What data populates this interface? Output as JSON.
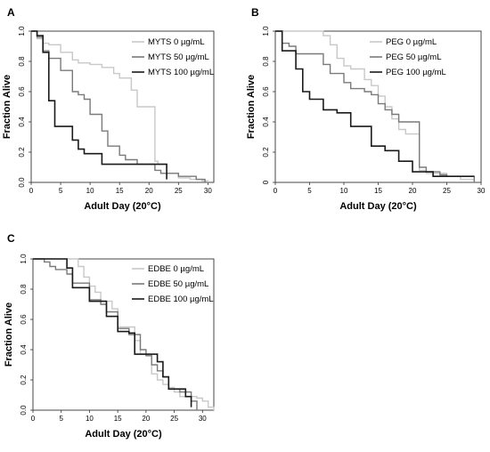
{
  "chart_data": [
    {
      "type": "line",
      "panel": "A",
      "xlabel": "Adult Day (20°C)",
      "ylabel": "Fraction Alive",
      "xlim": [
        0,
        31
      ],
      "ylim": [
        0,
        1.0
      ],
      "x_ticks": [
        0,
        5,
        10,
        15,
        20,
        25,
        30
      ],
      "y_ticks": [
        0.0,
        0.2,
        0.4,
        0.6,
        0.8,
        1.0
      ],
      "y_tick_labels": [
        "0.0",
        "0.2",
        "0.4",
        "0.6",
        "0.8",
        "1.0"
      ],
      "grid": false,
      "legend_position": "top-right",
      "step": true,
      "series": [
        {
          "name": "MYTS 0 µg/mL",
          "color": "#c8c8c8",
          "x": [
            0,
            1,
            2,
            3,
            5,
            7,
            8,
            10,
            12,
            14,
            15,
            17,
            18,
            21,
            21.5,
            23,
            25,
            27,
            29,
            30
          ],
          "y": [
            1.0,
            0.95,
            0.92,
            0.91,
            0.86,
            0.81,
            0.79,
            0.78,
            0.76,
            0.72,
            0.69,
            0.61,
            0.5,
            0.14,
            0.12,
            0.06,
            0.03,
            0.02,
            0.01,
            0.0
          ]
        },
        {
          "name": "MYTS 50 µg/mL",
          "color": "#7a7a7a",
          "x": [
            0,
            1,
            2,
            3,
            5,
            7,
            8,
            9,
            10,
            12,
            13,
            15,
            16,
            18,
            21,
            22,
            25,
            28,
            29.5
          ],
          "y": [
            1.0,
            0.96,
            0.87,
            0.82,
            0.74,
            0.6,
            0.58,
            0.55,
            0.45,
            0.34,
            0.24,
            0.18,
            0.15,
            0.12,
            0.08,
            0.06,
            0.04,
            0.02,
            0.0
          ]
        },
        {
          "name": "MYTS 100 µg/mL",
          "color": "#1a1a1a",
          "x": [
            0,
            1,
            2,
            3,
            4,
            7,
            8,
            9,
            12,
            23
          ],
          "y": [
            1.0,
            0.97,
            0.86,
            0.54,
            0.37,
            0.28,
            0.22,
            0.19,
            0.12,
            0.02
          ]
        }
      ]
    },
    {
      "type": "line",
      "panel": "B",
      "xlabel": "Adult Day (20°C)",
      "ylabel": "Fraction Alive",
      "xlim": [
        0,
        30
      ],
      "ylim": [
        0,
        1.0
      ],
      "x_ticks": [
        0,
        5,
        10,
        15,
        20,
        25,
        30
      ],
      "y_ticks": [
        0.0,
        0.2,
        0.4,
        0.6,
        0.8,
        1.0
      ],
      "y_tick_labels": [
        "0",
        "0.2",
        "0.4",
        "0.6",
        "0.8",
        "1.0"
      ],
      "grid": false,
      "legend_position": "top-right",
      "step": true,
      "series": [
        {
          "name": "PEG 0 µg/mL",
          "color": "#c8c8c8",
          "x": [
            0,
            7,
            8,
            9,
            10,
            11,
            13,
            14,
            15,
            16,
            17,
            18,
            19,
            21,
            22,
            25,
            27,
            29
          ],
          "y": [
            1.0,
            0.97,
            0.91,
            0.82,
            0.77,
            0.75,
            0.68,
            0.64,
            0.57,
            0.5,
            0.42,
            0.35,
            0.32,
            0.08,
            0.06,
            0.04,
            0.02,
            0.0
          ]
        },
        {
          "name": "PEG 50 µg/mL",
          "color": "#7a7a7a",
          "x": [
            0,
            1,
            2,
            3,
            7,
            8,
            10,
            11,
            13,
            14,
            15,
            16,
            17,
            18,
            21,
            22,
            24,
            25,
            29
          ],
          "y": [
            1.0,
            0.92,
            0.9,
            0.85,
            0.78,
            0.72,
            0.66,
            0.62,
            0.6,
            0.58,
            0.52,
            0.48,
            0.45,
            0.4,
            0.1,
            0.07,
            0.05,
            0.04,
            0.0
          ]
        },
        {
          "name": "PEG 100 µg/mL",
          "color": "#1a1a1a",
          "x": [
            0,
            1,
            3,
            4,
            5,
            7,
            9,
            11,
            14,
            16,
            18,
            20,
            23,
            29
          ],
          "y": [
            1.0,
            0.87,
            0.75,
            0.6,
            0.55,
            0.48,
            0.46,
            0.37,
            0.24,
            0.21,
            0.14,
            0.07,
            0.04,
            0.04
          ]
        }
      ]
    },
    {
      "type": "line",
      "panel": "C",
      "xlabel": "Adult Day (20°C)",
      "ylabel": "Fraction Alive",
      "xlim": [
        0,
        32
      ],
      "ylim": [
        0,
        1.0
      ],
      "x_ticks": [
        0,
        5,
        10,
        15,
        20,
        25,
        30
      ],
      "y_ticks": [
        0.0,
        0.2,
        0.4,
        0.6,
        0.8,
        1.0
      ],
      "y_tick_labels": [
        "0.0",
        "0.2",
        "0.4",
        "0.6",
        "0.8",
        "1.0"
      ],
      "grid": false,
      "legend_position": "top-right",
      "step": true,
      "series": [
        {
          "name": "EDBE 0 µg/mL",
          "color": "#c8c8c8",
          "x": [
            0,
            8,
            9,
            10,
            11,
            12,
            14,
            15,
            18,
            19,
            21,
            22,
            23,
            24,
            25,
            26,
            29,
            30,
            31,
            32
          ],
          "y": [
            1.0,
            0.95,
            0.88,
            0.82,
            0.78,
            0.72,
            0.67,
            0.55,
            0.46,
            0.37,
            0.24,
            0.2,
            0.17,
            0.15,
            0.12,
            0.09,
            0.08,
            0.06,
            0.02,
            0.0
          ]
        },
        {
          "name": "EDBE 50 µg/mL",
          "color": "#7a7a7a",
          "x": [
            0,
            2,
            3,
            4,
            6,
            7,
            10,
            12,
            13,
            15,
            17,
            19,
            20,
            21,
            22,
            23,
            24,
            26,
            28,
            29
          ],
          "y": [
            1.0,
            0.98,
            0.95,
            0.93,
            0.9,
            0.84,
            0.73,
            0.7,
            0.65,
            0.54,
            0.5,
            0.4,
            0.36,
            0.3,
            0.26,
            0.22,
            0.14,
            0.12,
            0.06,
            0.0
          ]
        },
        {
          "name": "EDBE 100 µg/mL",
          "color": "#1a1a1a",
          "x": [
            0,
            6,
            7,
            10,
            12,
            13,
            15,
            17,
            18,
            20,
            22,
            23,
            24,
            27,
            28
          ],
          "y": [
            1.0,
            0.94,
            0.81,
            0.72,
            0.72,
            0.62,
            0.52,
            0.51,
            0.37,
            0.37,
            0.32,
            0.22,
            0.14,
            0.09,
            0.02
          ]
        }
      ]
    }
  ]
}
